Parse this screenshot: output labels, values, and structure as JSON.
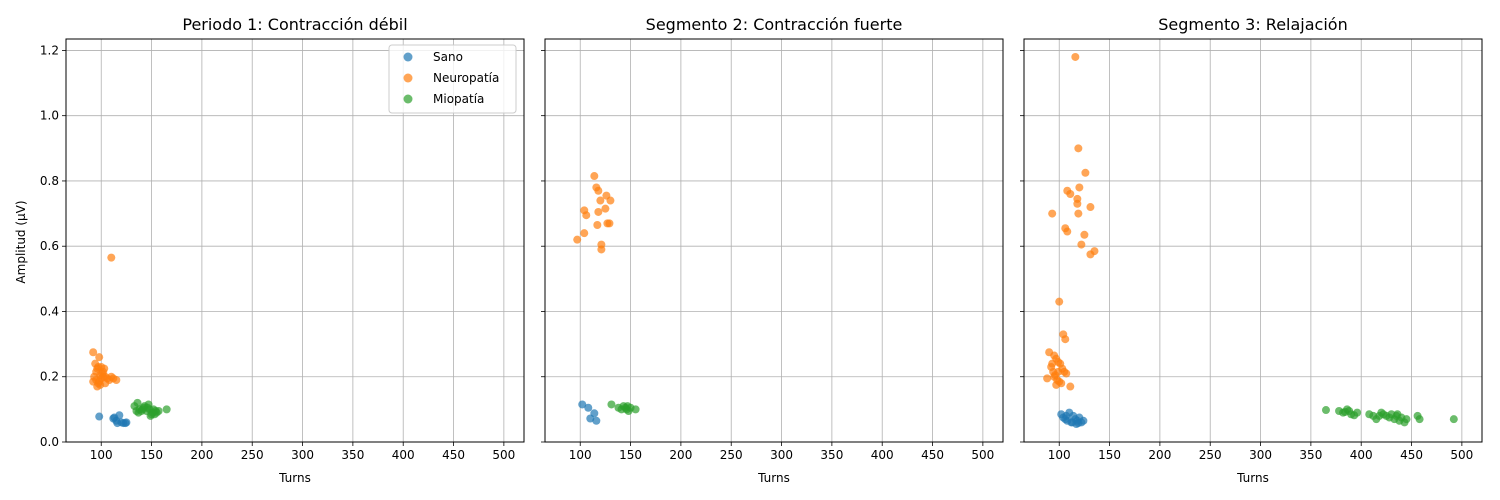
{
  "chart_data": [
    {
      "type": "scatter",
      "title": "Periodo 1: Contracción débil",
      "xlabel": "Turns",
      "ylabel": "Amplitud (µV)",
      "xlim": [
        65,
        520
      ],
      "ylim": [
        0,
        1.235
      ],
      "xticks": [
        100,
        150,
        200,
        250,
        300,
        350,
        400,
        450,
        500
      ],
      "yticks": [
        0.0,
        0.2,
        0.4,
        0.6,
        0.8,
        1.0,
        1.2
      ],
      "grid": true,
      "legend": "top-right",
      "series": [
        {
          "name": "Sano",
          "color": "#1f77b4",
          "points": [
            [
              98,
              0.078
            ],
            [
              112,
              0.072
            ],
            [
              115,
              0.065
            ],
            [
              116,
              0.058
            ],
            [
              118,
              0.082
            ],
            [
              120,
              0.06
            ],
            [
              122,
              0.058
            ],
            [
              124,
              0.058
            ],
            [
              125,
              0.06
            ],
            [
              113,
              0.075
            ]
          ]
        },
        {
          "name": "Neuropatía",
          "color": "#ff7f0e",
          "points": [
            [
              110,
              0.565
            ],
            [
              92,
              0.275
            ],
            [
              94,
              0.24
            ],
            [
              96,
              0.225
            ],
            [
              98,
              0.26
            ],
            [
              100,
              0.23
            ],
            [
              102,
              0.215
            ],
            [
              104,
              0.2
            ],
            [
              106,
              0.195
            ],
            [
              108,
              0.19
            ],
            [
              110,
              0.2
            ],
            [
              112,
              0.195
            ],
            [
              115,
              0.19
            ],
            [
              93,
              0.2
            ],
            [
              95,
              0.19
            ],
            [
              97,
              0.18
            ],
            [
              99,
              0.175
            ],
            [
              101,
              0.21
            ],
            [
              103,
              0.225
            ],
            [
              95,
              0.215
            ],
            [
              97,
              0.23
            ],
            [
              99,
              0.205
            ],
            [
              92,
              0.185
            ],
            [
              96,
              0.17
            ],
            [
              100,
              0.195
            ],
            [
              104,
              0.18
            ],
            [
              98,
              0.185
            ],
            [
              102,
              0.2
            ]
          ]
        },
        {
          "name": "Miopatía",
          "color": "#2ca02c",
          "points": [
            [
              133,
              0.11
            ],
            [
              136,
              0.12
            ],
            [
              138,
              0.1
            ],
            [
              140,
              0.095
            ],
            [
              142,
              0.105
            ],
            [
              143,
              0.11
            ],
            [
              145,
              0.095
            ],
            [
              147,
              0.115
            ],
            [
              148,
              0.1
            ],
            [
              150,
              0.085
            ],
            [
              151,
              0.09
            ],
            [
              152,
              0.1
            ],
            [
              154,
              0.095
            ],
            [
              155,
              0.09
            ],
            [
              157,
              0.095
            ],
            [
              165,
              0.1
            ],
            [
              137,
              0.09
            ],
            [
              141,
              0.1
            ],
            [
              146,
              0.105
            ],
            [
              153,
              0.085
            ],
            [
              135,
              0.095
            ],
            [
              149,
              0.08
            ]
          ]
        }
      ]
    },
    {
      "type": "scatter",
      "title": "Segmento 2: Contracción fuerte",
      "xlabel": "Turns",
      "ylabel": "",
      "xlim": [
        65,
        520
      ],
      "ylim": [
        0,
        1.235
      ],
      "xticks": [
        100,
        150,
        200,
        250,
        300,
        350,
        400,
        450,
        500
      ],
      "yticks": [
        0.0,
        0.2,
        0.4,
        0.6,
        0.8,
        1.0,
        1.2
      ],
      "grid": true,
      "series": [
        {
          "name": "Sano",
          "color": "#1f77b4",
          "points": [
            [
              102,
              0.115
            ],
            [
              108,
              0.105
            ],
            [
              110,
              0.072
            ],
            [
              114,
              0.088
            ],
            [
              116,
              0.065
            ]
          ]
        },
        {
          "name": "Neuropatía",
          "color": "#ff7f0e",
          "points": [
            [
              97,
              0.62
            ],
            [
              104,
              0.64
            ],
            [
              104,
              0.71
            ],
            [
              106,
              0.695
            ],
            [
              114,
              0.815
            ],
            [
              116,
              0.78
            ],
            [
              118,
              0.77
            ],
            [
              117,
              0.665
            ],
            [
              118,
              0.705
            ],
            [
              120,
              0.74
            ],
            [
              121,
              0.605
            ],
            [
              121,
              0.59
            ],
            [
              125,
              0.715
            ],
            [
              126,
              0.755
            ],
            [
              127,
              0.67
            ],
            [
              129,
              0.67
            ],
            [
              130,
              0.74
            ]
          ]
        },
        {
          "name": "Miopatía",
          "color": "#2ca02c",
          "points": [
            [
              131,
              0.115
            ],
            [
              138,
              0.105
            ],
            [
              141,
              0.1
            ],
            [
              143,
              0.11
            ],
            [
              145,
              0.105
            ],
            [
              147,
              0.11
            ],
            [
              148,
              0.095
            ],
            [
              150,
              0.105
            ],
            [
              155,
              0.1
            ],
            [
              146,
              0.1
            ]
          ]
        }
      ]
    },
    {
      "type": "scatter",
      "title": "Segmento 3: Relajación",
      "xlabel": "Turns",
      "ylabel": "",
      "xlim": [
        65,
        520
      ],
      "ylim": [
        0,
        1.235
      ],
      "xticks": [
        100,
        150,
        200,
        250,
        300,
        350,
        400,
        450,
        500
      ],
      "yticks": [
        0.0,
        0.2,
        0.4,
        0.6,
        0.8,
        1.0,
        1.2
      ],
      "grid": true,
      "series": [
        {
          "name": "Sano",
          "color": "#1f77b4",
          "points": [
            [
              102,
              0.085
            ],
            [
              104,
              0.075
            ],
            [
              106,
              0.07
            ],
            [
              108,
              0.065
            ],
            [
              110,
              0.09
            ],
            [
              112,
              0.06
            ],
            [
              114,
              0.08
            ],
            [
              116,
              0.07
            ],
            [
              118,
              0.065
            ],
            [
              120,
              0.075
            ],
            [
              122,
              0.06
            ],
            [
              124,
              0.065
            ],
            [
              113,
              0.06
            ],
            [
              117,
              0.055
            ],
            [
              107,
              0.08
            ],
            [
              119,
              0.058
            ]
          ]
        },
        {
          "name": "Neuropatía",
          "color": "#ff7f0e",
          "points": [
            [
              116,
              1.18
            ],
            [
              119,
              0.9
            ],
            [
              126,
              0.825
            ],
            [
              108,
              0.77
            ],
            [
              111,
              0.76
            ],
            [
              120,
              0.78
            ],
            [
              93,
              0.7
            ],
            [
              118,
              0.745
            ],
            [
              118,
              0.73
            ],
            [
              119,
              0.7
            ],
            [
              131,
              0.72
            ],
            [
              106,
              0.655
            ],
            [
              108,
              0.645
            ],
            [
              125,
              0.635
            ],
            [
              122,
              0.605
            ],
            [
              135,
              0.585
            ],
            [
              131,
              0.575
            ],
            [
              100,
              0.43
            ],
            [
              104,
              0.33
            ],
            [
              106,
              0.315
            ],
            [
              90,
              0.275
            ],
            [
              95,
              0.265
            ],
            [
              97,
              0.255
            ],
            [
              99,
              0.245
            ],
            [
              101,
              0.24
            ],
            [
              103,
              0.225
            ],
            [
              105,
              0.215
            ],
            [
              107,
              0.21
            ],
            [
              92,
              0.23
            ],
            [
              94,
              0.215
            ],
            [
              96,
              0.205
            ],
            [
              98,
              0.19
            ],
            [
              100,
              0.185
            ],
            [
              102,
              0.18
            ],
            [
              88,
              0.195
            ],
            [
              97,
              0.175
            ],
            [
              111,
              0.17
            ],
            [
              93,
              0.24
            ],
            [
              99,
              0.215
            ],
            [
              95,
              0.2
            ]
          ]
        },
        {
          "name": "Miopatía",
          "color": "#2ca02c",
          "points": [
            [
              365,
              0.098
            ],
            [
              378,
              0.095
            ],
            [
              384,
              0.092
            ],
            [
              386,
              0.1
            ],
            [
              388,
              0.095
            ],
            [
              390,
              0.085
            ],
            [
              393,
              0.082
            ],
            [
              396,
              0.09
            ],
            [
              408,
              0.085
            ],
            [
              412,
              0.08
            ],
            [
              415,
              0.07
            ],
            [
              420,
              0.09
            ],
            [
              422,
              0.085
            ],
            [
              425,
              0.08
            ],
            [
              428,
              0.075
            ],
            [
              430,
              0.085
            ],
            [
              433,
              0.07
            ],
            [
              435,
              0.08
            ],
            [
              438,
              0.065
            ],
            [
              440,
              0.075
            ],
            [
              443,
              0.06
            ],
            [
              445,
              0.07
            ],
            [
              456,
              0.08
            ],
            [
              458,
              0.07
            ],
            [
              492,
              0.07
            ],
            [
              382,
              0.09
            ],
            [
              418,
              0.08
            ],
            [
              436,
              0.085
            ]
          ]
        }
      ]
    }
  ]
}
